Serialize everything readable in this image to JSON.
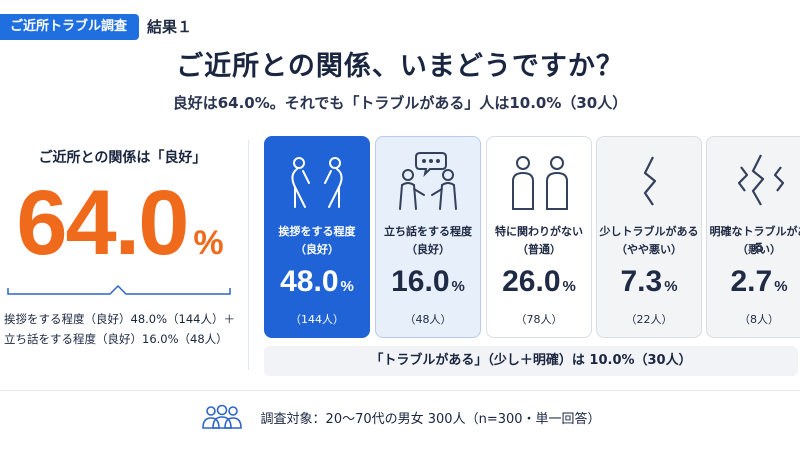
{
  "header": {
    "tag": "ご近所トラブル調査",
    "sub": "結果１"
  },
  "title": "ご近所との関係、いまどうですか？",
  "subtitle": "良好は64.0%。それでも「トラブルがある」人は10.0%（30人）",
  "summary": {
    "label": "ご近所との関係は「良好」",
    "value": "64.0",
    "unit": "%",
    "note_line1": "挨拶をする程度（良好）48.0%（144人）＋",
    "note_line2": "立ち話をする程度（良好）16.0%（48人）"
  },
  "chart_data": {
    "type": "bar",
    "categories": [
      "挨拶をする程度（良好）",
      "立ち話をする程度（良好）",
      "特に関わりがない（普通）",
      "少しトラブルがある（やや悪い）",
      "明確なトラブルがある（悪い）"
    ],
    "values": [
      48.0,
      16.0,
      26.0,
      7.3,
      2.7
    ],
    "counts": [
      144,
      48,
      78,
      22,
      8
    ],
    "unit": "%",
    "cards": [
      {
        "line1": "挨拶をする程度",
        "line2": "（良好）",
        "value": "48.0",
        "unit": "%",
        "count": "（144人）",
        "style": "primary",
        "icon": "bowing-people-icon"
      },
      {
        "line1": "立ち話をする程度",
        "line2": "（良好）",
        "value": "16.0",
        "unit": "%",
        "count": "（48人）",
        "style": "secondary",
        "icon": "chatting-people-icon"
      },
      {
        "line1": "特に関わりがない",
        "line2": "（普通）",
        "value": "26.0",
        "unit": "%",
        "count": "（78人）",
        "style": "plain",
        "icon": "two-people-icon"
      },
      {
        "line1": "少しトラブルがある",
        "line2": "（やや悪い）",
        "value": "7.3",
        "unit": "%",
        "count": "（22人）",
        "style": "gray",
        "icon": "zigzag-icon"
      },
      {
        "line1": "明確なトラブルがある",
        "line2": "（悪い）",
        "value": "2.7",
        "unit": "%",
        "count": "（8人）",
        "style": "gray",
        "icon": "triple-zigzag-icon"
      }
    ]
  },
  "trouble_note": "「トラブルがある」（少し＋明確）は 10.0%（30人）",
  "footer": {
    "text": "調査対象：20〜70代の男女 300人（n=300・単一回答）",
    "icon": "people-group-icon"
  },
  "colors": {
    "accent": "#1f63d6",
    "highlight": "#f06a1c",
    "secondary_bg": "#e7effb"
  }
}
